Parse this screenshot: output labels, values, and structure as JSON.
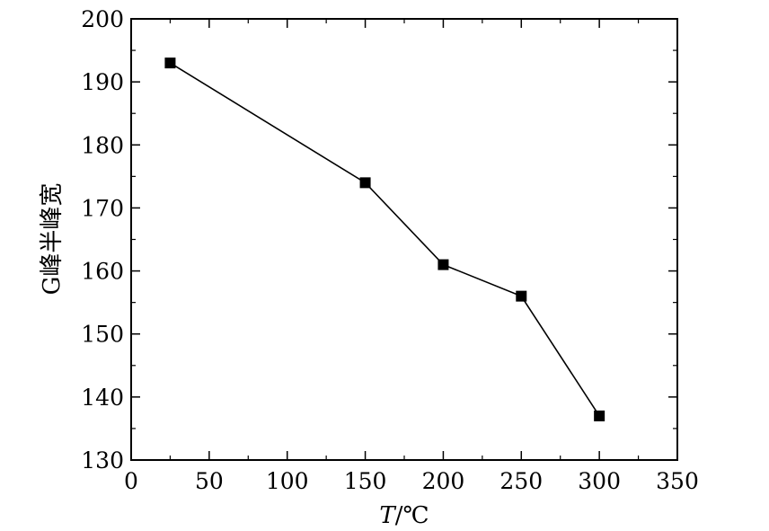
{
  "chart_data": {
    "type": "line",
    "title": "",
    "xlabel": "T/℃",
    "ylabel": "G峰半峰宽",
    "xlim": [
      0,
      350
    ],
    "ylim": [
      130,
      200
    ],
    "xticks": [
      0,
      50,
      100,
      150,
      200,
      250,
      300,
      350
    ],
    "yticks": [
      130,
      140,
      150,
      160,
      170,
      180,
      190,
      200
    ],
    "grid": false,
    "legend": "none",
    "series": [
      {
        "marker": "square",
        "color": "#000000",
        "x": [
          25,
          150,
          200,
          250,
          300
        ],
        "y": [
          193,
          174,
          161,
          156,
          137
        ]
      }
    ]
  }
}
